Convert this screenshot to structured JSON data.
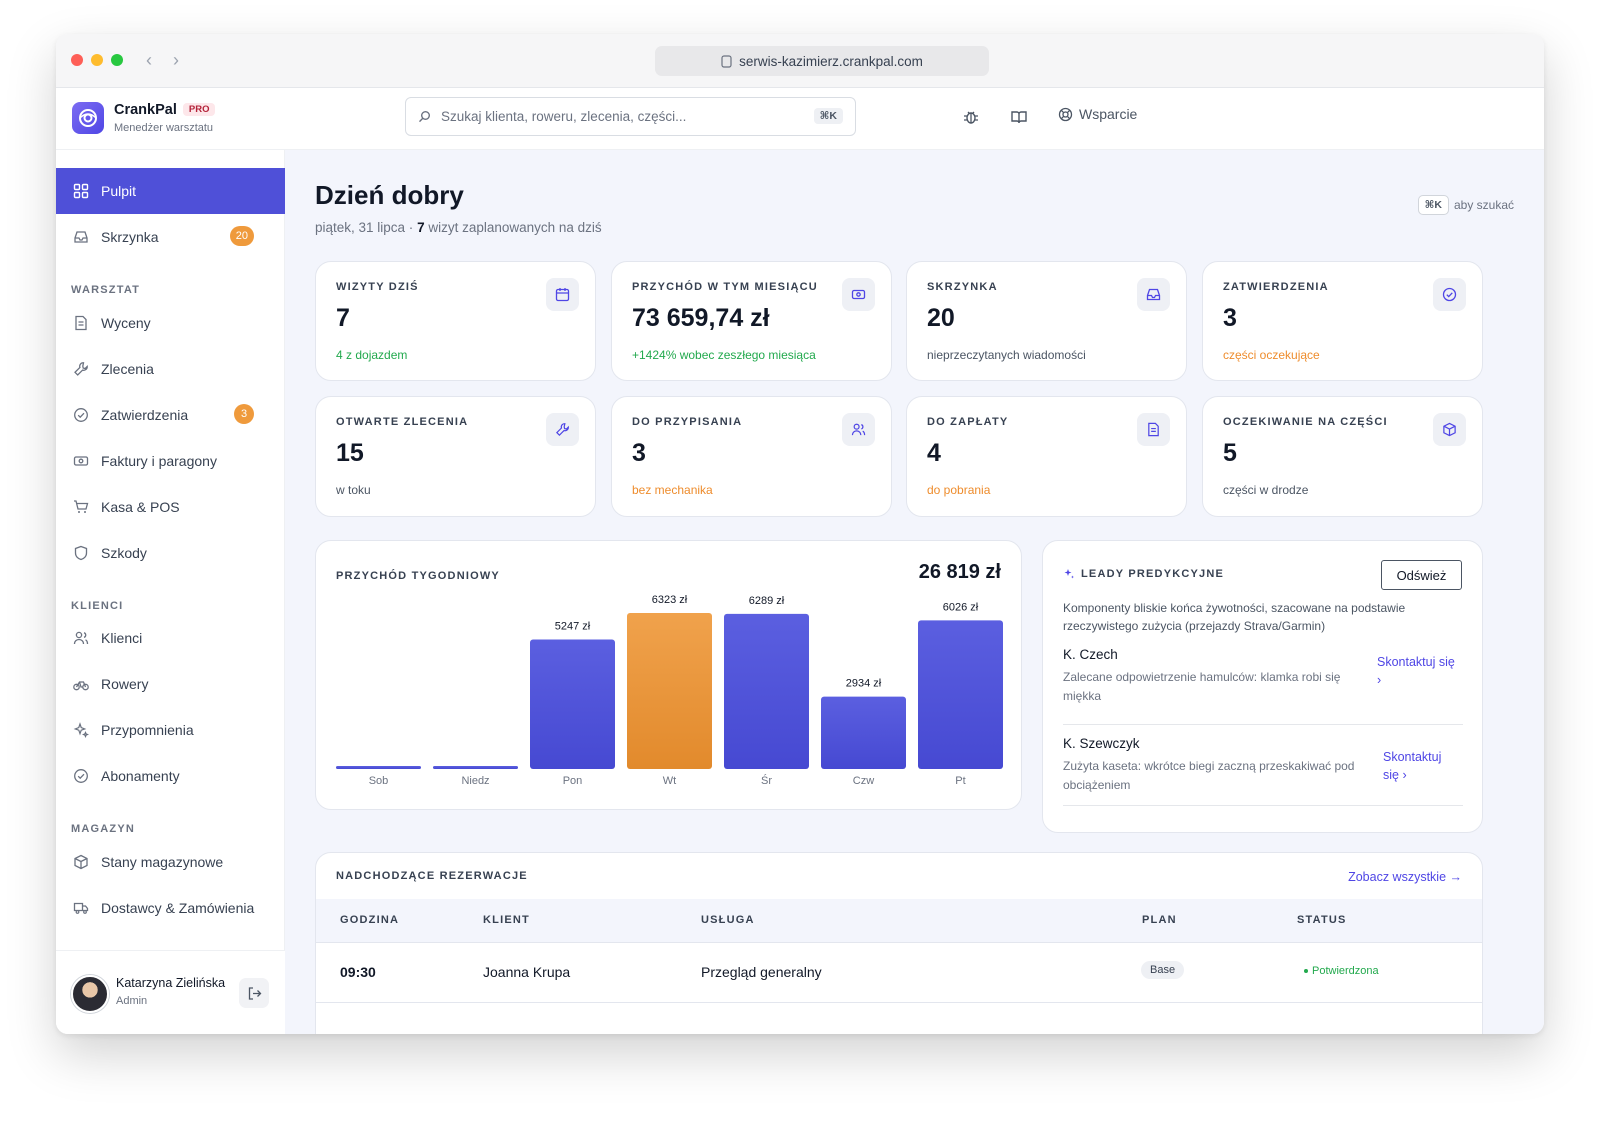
{
  "browser": {
    "url": "serwis-kazimierz.crankpal.com"
  },
  "brand": {
    "name": "CrankPal",
    "badge": "PRO",
    "subtitle": "Menedżer warsztatu"
  },
  "header": {
    "search_placeholder": "Szukaj klienta, roweru, zlecenia, części...",
    "search_shortcut": "⌘K",
    "support_label": "Wsparcie"
  },
  "sidebar": {
    "items": [
      {
        "label": "Pulpit",
        "icon": "grid-icon",
        "active": true
      },
      {
        "label": "Skrzynka",
        "icon": "inbox-icon",
        "badge": "20"
      }
    ],
    "sections": [
      {
        "title": "WARSZTAT",
        "items": [
          {
            "label": "Wyceny",
            "icon": "document-icon"
          },
          {
            "label": "Zlecenia",
            "icon": "wrench-icon"
          },
          {
            "label": "Zatwierdzenia",
            "icon": "check-circle-icon",
            "badge": "3"
          },
          {
            "label": "Faktury i paragony",
            "icon": "banknote-icon"
          },
          {
            "label": "Kasa & POS",
            "icon": "cart-icon"
          },
          {
            "label": "Szkody",
            "icon": "shield-icon"
          }
        ]
      },
      {
        "title": "KLIENCI",
        "items": [
          {
            "label": "Klienci",
            "icon": "users-icon"
          },
          {
            "label": "Rowery",
            "icon": "bicycle-icon"
          },
          {
            "label": "Przypomnienia",
            "icon": "sparkle-icon"
          },
          {
            "label": "Abonamenty",
            "icon": "check-circle-icon"
          }
        ]
      },
      {
        "title": "MAGAZYN",
        "items": [
          {
            "label": "Stany magazynowe",
            "icon": "box-icon"
          },
          {
            "label": "Dostawcy & Zamówienia",
            "icon": "truck-icon"
          }
        ]
      }
    ],
    "user": {
      "name": "Katarzyna Zielińska",
      "role": "Admin"
    }
  },
  "main": {
    "greeting": "Dzień dobry",
    "date": "piątek, 31 lipca · ",
    "visits_count": "7",
    "visits_text": " wizyt zaplanowanych na dziś",
    "search_hint_key": "⌘K",
    "search_hint_text": "aby szukać"
  },
  "stats": [
    {
      "label": "WIZYTY DZIŚ",
      "value": "7",
      "note": "4 z dojazdem",
      "tone": "green",
      "icon": "calendar-icon"
    },
    {
      "label": "PRZYCHÓD W TYM MIESIĄCU",
      "value": "73 659,74 zł",
      "note": "+1424% wobec zeszłego miesiąca",
      "tone": "green",
      "icon": "banknote-icon"
    },
    {
      "label": "SKRZYNKA",
      "value": "20",
      "note": "nieprzeczytanych wiadomości",
      "tone": "gray",
      "icon": "inbox-icon"
    },
    {
      "label": "ZATWIERDZENIA",
      "value": "3",
      "note": "części oczekujące",
      "tone": "orange",
      "icon": "check-circle-icon"
    },
    {
      "label": "OTWARTE ZLECENIA",
      "value": "15",
      "note": "w toku",
      "tone": "gray",
      "icon": "wrench-icon"
    },
    {
      "label": "DO PRZYPISANIA",
      "value": "3",
      "note": "bez mechanika",
      "tone": "orange",
      "icon": "users-icon"
    },
    {
      "label": "DO ZAPŁATY",
      "value": "4",
      "note": "do pobrania",
      "tone": "orange",
      "icon": "document-icon"
    },
    {
      "label": "OCZEKIWANIE NA CZĘŚCI",
      "value": "5",
      "note": "części w drodze",
      "tone": "gray",
      "icon": "box-icon"
    }
  ],
  "weekly_revenue": {
    "title": "PRZYCHÓD TYGODNIOWY",
    "total": "26 819 zł"
  },
  "chart_data": {
    "type": "bar",
    "title": "PRZYCHÓD TYGODNIOWY",
    "categories": [
      "Sob",
      "Niedz",
      "Pon",
      "Wt",
      "Śr",
      "Czw",
      "Pt"
    ],
    "values": [
      0,
      0,
      5247,
      6323,
      6289,
      2934,
      6026
    ],
    "value_labels": [
      "",
      "",
      "5247 zł",
      "6323 zł",
      "6289 zł",
      "2934 zł",
      "6026 zł"
    ],
    "highlight_index": 3,
    "colors": {
      "bar": "#5457db",
      "highlight": "#ee9a40"
    },
    "ylim": [
      0,
      6323
    ],
    "grid": false
  },
  "leads": {
    "title": "LEADY PREDYKCYJNE",
    "refresh_label": "Odśwież",
    "description": "Komponenty bliskie końca żywotności, szacowane na podstawie rzeczywistego zużycia (przejazdy Strava/Garmin)",
    "items": [
      {
        "name": "K. Czech",
        "desc": "Zalecane odpowietrzenie hamulców: klamka robi się miękka",
        "action": "Skontaktuj się ›"
      },
      {
        "name": "K. Szewczyk",
        "desc": "Zużyta kaseta: wkrótce biegi zaczną przeskakiwać pod obciążeniem",
        "action": "Skontaktuj się ›"
      }
    ]
  },
  "bookings": {
    "title": "NADCHODZĄCE REZERWACJE",
    "see_all": "Zobacz wszystkie →",
    "columns": [
      "GODZINA",
      "KLIENT",
      "USŁUGA",
      "PLAN",
      "STATUS"
    ],
    "rows": [
      {
        "time": "09:30",
        "client": "Joanna Krupa",
        "service": "Przegląd generalny",
        "plan": "Base",
        "status": "Potwierdzona"
      }
    ]
  },
  "colors": {
    "accent": "#4f50d8",
    "badge": "#ef9a3c",
    "positive": "#22a94d",
    "warning": "#ee8c2c"
  }
}
